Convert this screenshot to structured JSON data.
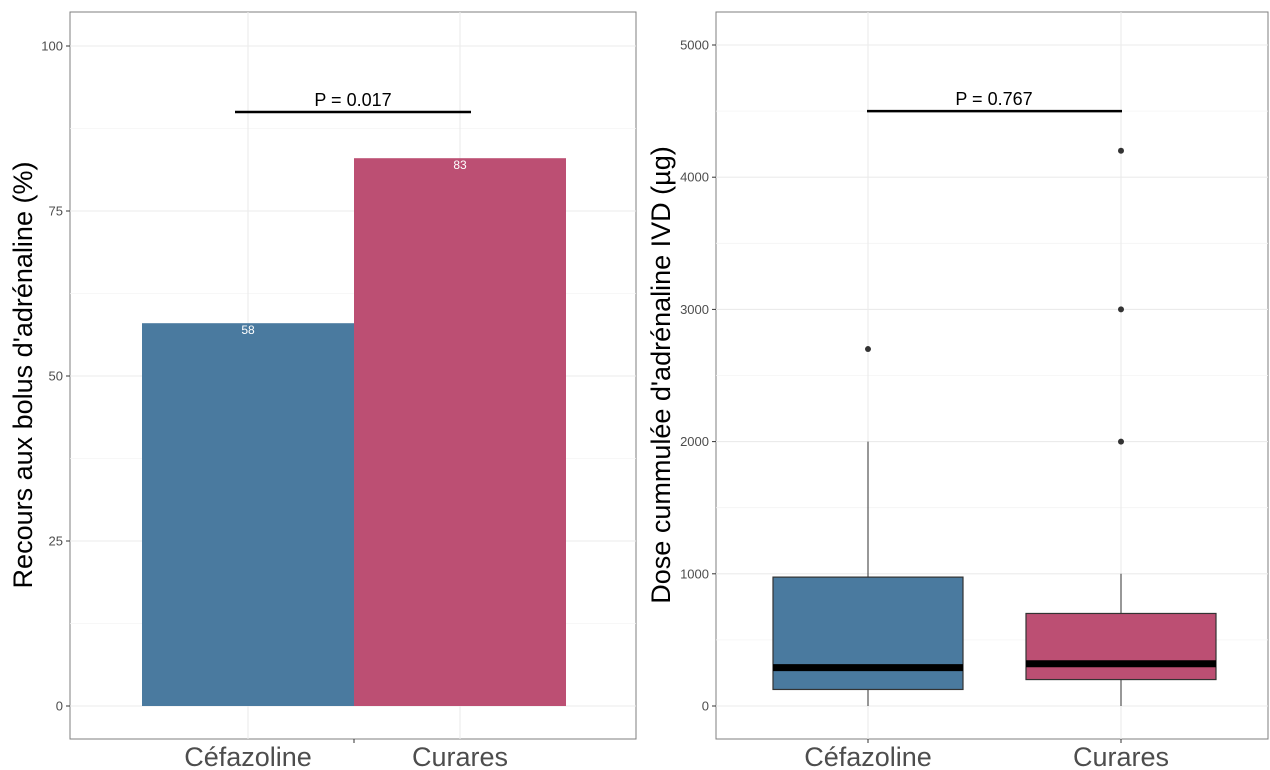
{
  "chart_data": [
    {
      "type": "bar",
      "ylabel": "Recours aux bolus d'adrénaline (%)",
      "ylim": [
        0,
        100
      ],
      "yticks": [
        "0",
        "25",
        "50",
        "75",
        "100"
      ],
      "categories": [
        "Céfazoline",
        "Curares"
      ],
      "values": [
        58,
        83
      ],
      "value_labels": [
        "58",
        "83"
      ],
      "colors": [
        "#4a7a9f",
        "#bc4f73"
      ],
      "annotation": {
        "text": "P = 0.017",
        "y": 90
      },
      "grid": true
    },
    {
      "type": "box",
      "ylabel": "Dose cummulée d'adrénaline IVD (µg)",
      "ylim": [
        0,
        5000
      ],
      "yticks": [
        "0",
        "1000",
        "2000",
        "3000",
        "4000",
        "5000"
      ],
      "categories": [
        "Céfazoline",
        "Curares"
      ],
      "boxes": [
        {
          "whisker_low": 0,
          "q1": 125,
          "median": 290,
          "q3": 975,
          "whisker_high": 2000,
          "outliers": [
            2700
          ]
        },
        {
          "whisker_low": 0,
          "q1": 200,
          "median": 320,
          "q3": 700,
          "whisker_high": 1000,
          "outliers": [
            2000,
            3000,
            4200
          ]
        }
      ],
      "colors": [
        "#4a7a9f",
        "#bc4f73"
      ],
      "annotation": {
        "text": "P = 0.767",
        "y": 4500
      },
      "grid": true
    }
  ]
}
